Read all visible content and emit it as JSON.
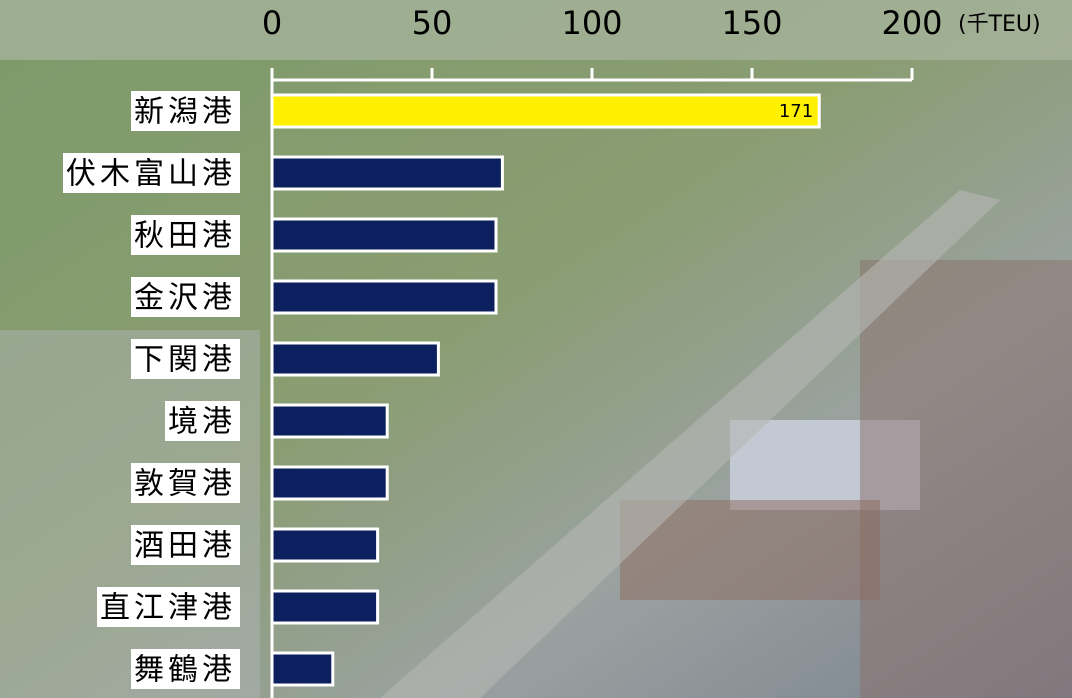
{
  "chart_data": {
    "type": "bar",
    "orientation": "horizontal",
    "unit_label": "(千TEU)",
    "categories": [
      "新潟港",
      "伏木富山港",
      "秋田港",
      "金沢港",
      "下関港",
      "境港",
      "敦賀港",
      "酒田港",
      "直江津港",
      "舞鶴港"
    ],
    "values": [
      171,
      72,
      70,
      70,
      52,
      36,
      36,
      33,
      33,
      19
    ],
    "value_labels": [
      "171",
      null,
      null,
      null,
      null,
      null,
      null,
      null,
      null,
      null
    ],
    "colors": [
      "#fff000",
      "#0c1f5e",
      "#0c1f5e",
      "#0c1f5e",
      "#0c1f5e",
      "#0c1f5e",
      "#0c1f5e",
      "#0c1f5e",
      "#0c1f5e",
      "#0c1f5e"
    ],
    "xlim": [
      0,
      200
    ],
    "xticks": [
      0,
      50,
      100,
      150,
      200
    ]
  }
}
